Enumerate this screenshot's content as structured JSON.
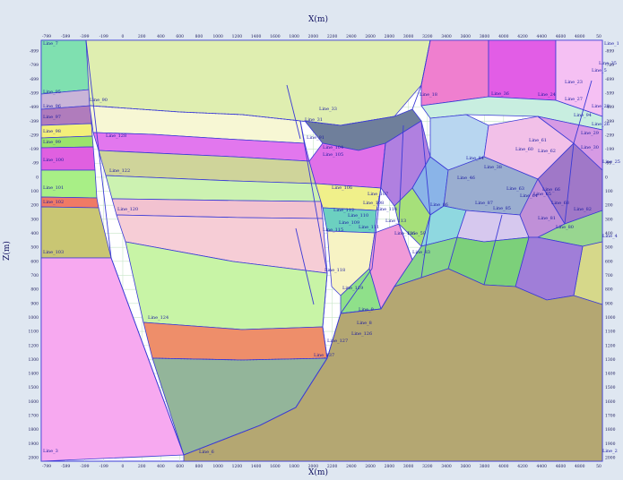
{
  "axes": {
    "x_title": "X(m)",
    "y_title": "Z(m)",
    "x_ticks_top": [
      "-799",
      "-599",
      "-399",
      "-199",
      "0",
      "200",
      "400",
      "600",
      "800",
      "1000",
      "1200",
      "1400",
      "1600",
      "1800",
      "2000",
      "2200",
      "2400",
      "2600",
      "2800",
      "3000",
      "3200",
      "3400",
      "3600",
      "3800",
      "4000",
      "4200",
      "4400",
      "4600",
      "4800",
      "50"
    ],
    "x_ticks_bottom": [
      "-799",
      "-599",
      "-399",
      "-199",
      "0",
      "200",
      "400",
      "600",
      "800",
      "1000",
      "1200",
      "1400",
      "1600",
      "1800",
      "2000",
      "2200",
      "2400",
      "2600",
      "2800",
      "3000",
      "3200",
      "3400",
      "3600",
      "3800",
      "4000",
      "4200",
      "4400",
      "4600",
      "4800",
      "50"
    ],
    "y_ticks": [
      "-899",
      "-799",
      "-699",
      "-599",
      "-499",
      "-399",
      "-299",
      "-199",
      "-99",
      "0",
      "100",
      "200",
      "300",
      "400",
      "500",
      "600",
      "700",
      "800",
      "900",
      "1000",
      "1100",
      "1200",
      "1300",
      "1400",
      "1500",
      "1600",
      "1700",
      "1800",
      "1900",
      "2000"
    ]
  },
  "colors": {
    "background": "#dfe7f1",
    "plot": "#ffffff",
    "grid": "#c8e6c8",
    "line": "#3b3bd6",
    "label": "#1a1aa0"
  },
  "line_labels": [
    {
      "id": "l1",
      "text": "Line_7"
    },
    {
      "id": "l2",
      "text": "Line_1"
    },
    {
      "id": "l3",
      "text": "Line_3"
    },
    {
      "id": "l4",
      "text": "Line_95"
    },
    {
      "id": "l5",
      "text": "Line_96"
    },
    {
      "id": "l6",
      "text": "Line_97"
    },
    {
      "id": "l7",
      "text": "Line_98"
    },
    {
      "id": "l8",
      "text": "Line_99"
    },
    {
      "id": "l9",
      "text": "Line_100"
    },
    {
      "id": "l10",
      "text": "Line_101"
    },
    {
      "id": "l11",
      "text": "Line_102"
    },
    {
      "id": "l12",
      "text": "Line_103"
    },
    {
      "id": "l13",
      "text": "Line_90"
    },
    {
      "id": "l14",
      "text": "Line_128"
    },
    {
      "id": "l15",
      "text": "Line_122"
    },
    {
      "id": "l16",
      "text": "Line_120"
    },
    {
      "id": "l17",
      "text": "Line_124"
    },
    {
      "id": "l18",
      "text": "Line_137"
    },
    {
      "id": "l19",
      "text": "Line_31"
    },
    {
      "id": "l20",
      "text": "Line_33"
    },
    {
      "id": "l21",
      "text": "Line_91"
    },
    {
      "id": "l22",
      "text": "Line_104"
    },
    {
      "id": "l23",
      "text": "Line_105"
    },
    {
      "id": "l24",
      "text": "Line_106"
    },
    {
      "id": "l25",
      "text": "Line_107"
    },
    {
      "id": "l26",
      "text": "Line_112"
    },
    {
      "id": "l27",
      "text": "Line_115"
    },
    {
      "id": "l28",
      "text": "Line_118"
    },
    {
      "id": "l29",
      "text": "Line_119"
    },
    {
      "id": "l30",
      "text": "Line_59"
    },
    {
      "id": "l31",
      "text": "Line_83"
    },
    {
      "id": "l32",
      "text": "Line_9"
    },
    {
      "id": "l33",
      "text": "Line_8"
    },
    {
      "id": "l34",
      "text": "Line_127"
    },
    {
      "id": "l35",
      "text": "Line_126"
    },
    {
      "id": "l36",
      "text": "Line_18"
    },
    {
      "id": "l37",
      "text": "Line_36"
    },
    {
      "id": "l38",
      "text": "Line_24"
    },
    {
      "id": "l39",
      "text": "Line_23"
    },
    {
      "id": "l40",
      "text": "Line_27"
    },
    {
      "id": "l41",
      "text": "Line_28"
    },
    {
      "id": "l42",
      "text": "Line_35"
    },
    {
      "id": "l43",
      "text": "Line_25"
    },
    {
      "id": "l44",
      "text": "Line_2"
    },
    {
      "id": "l45",
      "text": "Line_4"
    },
    {
      "id": "l46",
      "text": "Line_30"
    },
    {
      "id": "l47",
      "text": "Line_61"
    },
    {
      "id": "l48",
      "text": "Line_60"
    },
    {
      "id": "l49",
      "text": "Line_62"
    },
    {
      "id": "l50",
      "text": "Line_63"
    },
    {
      "id": "l51",
      "text": "Line_64"
    },
    {
      "id": "l52",
      "text": "Line_65"
    },
    {
      "id": "l53",
      "text": "Line_66"
    },
    {
      "id": "l54",
      "text": "Line_68"
    },
    {
      "id": "l55",
      "text": "Line_38"
    },
    {
      "id": "l56",
      "text": "Line_87"
    },
    {
      "id": "l57",
      "text": "Line_81"
    },
    {
      "id": "l58",
      "text": "Line_82"
    },
    {
      "id": "l59",
      "text": "Line_80"
    },
    {
      "id": "l60",
      "text": "Line_85"
    },
    {
      "id": "l61",
      "text": "Line_46"
    },
    {
      "id": "l62",
      "text": "Line_84"
    },
    {
      "id": "l63",
      "text": "Line_26"
    },
    {
      "id": "l64",
      "text": "Line_29"
    },
    {
      "id": "l65",
      "text": "Line_5"
    },
    {
      "id": "l66",
      "text": "Line_6"
    },
    {
      "id": "l67",
      "text": "Line_94"
    },
    {
      "id": "l68",
      "text": "Line_114"
    },
    {
      "id": "l69",
      "text": "Line_113"
    },
    {
      "id": "l70",
      "text": "Line_116"
    },
    {
      "id": "l71",
      "text": "Line_109"
    },
    {
      "id": "l72",
      "text": "Line_110"
    },
    {
      "id": "l73",
      "text": "Line_111"
    },
    {
      "id": "l74",
      "text": "Line_108"
    },
    {
      "id": "l75",
      "text": "Line_86"
    }
  ]
}
